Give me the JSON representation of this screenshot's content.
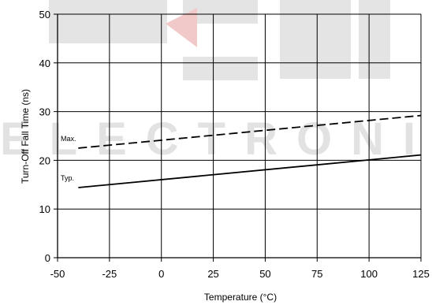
{
  "watermark": {
    "text": "ELECTRONIC",
    "shape_color": "#e4e4e4",
    "accent_color": "#f2c9c9"
  },
  "chart_data": {
    "type": "line",
    "title": "",
    "xlabel": "Temperature (°C)",
    "ylabel": "Turn-Off Fall Time (ns)",
    "xlim": [
      -50,
      125
    ],
    "ylim": [
      0,
      50
    ],
    "x_ticks": [
      -50,
      -25,
      0,
      25,
      50,
      75,
      100,
      125
    ],
    "y_ticks": [
      0,
      10,
      20,
      30,
      40,
      50
    ],
    "grid": true,
    "legend": "none",
    "series": [
      {
        "name": "Max.",
        "style": "dashed",
        "color": "#000000",
        "x": [
          -40,
          125
        ],
        "y": [
          22.5,
          29.2
        ]
      },
      {
        "name": "Typ.",
        "style": "solid",
        "color": "#000000",
        "x": [
          -40,
          125
        ],
        "y": [
          14.4,
          21.1
        ]
      }
    ]
  }
}
